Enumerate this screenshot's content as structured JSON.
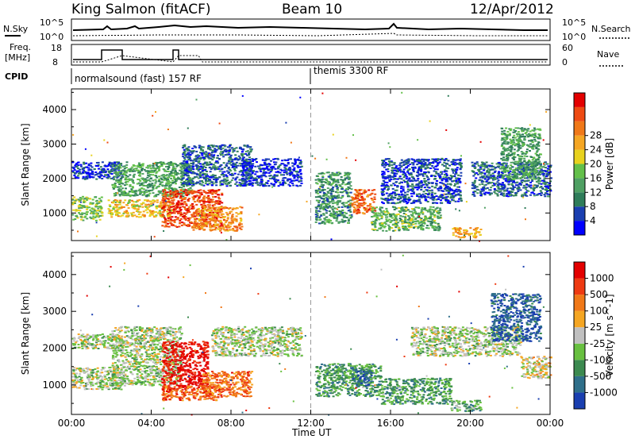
{
  "header": {
    "station": "King Salmon (fitACF)",
    "beam": "Beam 10",
    "date": "12/Apr/2012"
  },
  "status_panels": {
    "nsky_label": "N.Sky",
    "nsky_ticks": [
      "10^5",
      "10^0"
    ],
    "nsearch_label": "N.Search",
    "nsearch_ticks": [
      "10^5",
      "10^0"
    ],
    "freq_label": "Freq.",
    "freq_unit": "[MHz]",
    "freq_ticks": [
      "18",
      "8"
    ],
    "nave_label": "Nave",
    "nave_ticks": [
      "60",
      "0"
    ],
    "cpid_label": "CPID",
    "cpid_segments": [
      {
        "text": "normalsound (fast) 157 RF",
        "start_hour": 0
      },
      {
        "text": "themis 3300 RF",
        "start_hour": 12
      }
    ]
  },
  "time_axis": {
    "label": "Time UT",
    "ticks": [
      "00:00",
      "04:00",
      "08:00",
      "12:00",
      "16:00",
      "20:00",
      "00:00"
    ],
    "range_hours": [
      0,
      24
    ]
  },
  "chart_data": [
    {
      "type": "heatmap",
      "name": "power",
      "ylabel": "Slant Range [km]",
      "yticks": [
        1000,
        2000,
        3000,
        4000
      ],
      "ylim": [
        200,
        4600
      ],
      "xlim_hours": [
        0,
        24
      ],
      "colorbar_label": "Power [dB]",
      "colorbar_ticks": [
        "4",
        "8",
        "12",
        "16",
        "20",
        "24",
        "28"
      ],
      "colors": [
        "#0000ff",
        "#1a3fb0",
        "#2f7d5a",
        "#4fa063",
        "#63c04a",
        "#e8d21e",
        "#f5a623",
        "#f07818",
        "#ee4a12",
        "#e30000"
      ],
      "regions": [
        {
          "t": [
            0.0,
            1.5
          ],
          "r": [
            800,
            1500
          ],
          "v": 0.45
        },
        {
          "t": [
            0.0,
            2.5
          ],
          "r": [
            2000,
            2500
          ],
          "v": 0.12
        },
        {
          "t": [
            1.8,
            5.0
          ],
          "r": [
            900,
            1400
          ],
          "v": 0.6
        },
        {
          "t": [
            2.0,
            6.0
          ],
          "r": [
            1500,
            2500
          ],
          "v": 0.35
        },
        {
          "t": [
            4.5,
            7.5
          ],
          "r": [
            600,
            1700
          ],
          "v": 0.85
        },
        {
          "t": [
            5.5,
            9.0
          ],
          "r": [
            1800,
            3000
          ],
          "v": 0.2
        },
        {
          "t": [
            6.0,
            8.5
          ],
          "r": [
            500,
            1200
          ],
          "v": 0.7
        },
        {
          "t": [
            8.5,
            11.5
          ],
          "r": [
            1800,
            2600
          ],
          "v": 0.1
        },
        {
          "t": [
            12.2,
            14.0
          ],
          "r": [
            700,
            2200
          ],
          "v": 0.3
        },
        {
          "t": [
            14.0,
            15.2
          ],
          "r": [
            1000,
            1700
          ],
          "v": 0.8
        },
        {
          "t": [
            15.0,
            18.5
          ],
          "r": [
            500,
            1200
          ],
          "v": 0.4
        },
        {
          "t": [
            15.5,
            19.5
          ],
          "r": [
            1300,
            2600
          ],
          "v": 0.15
        },
        {
          "t": [
            19.0,
            20.5
          ],
          "r": [
            300,
            600
          ],
          "v": 0.65
        },
        {
          "t": [
            20.0,
            24.0
          ],
          "r": [
            1500,
            2500
          ],
          "v": 0.2
        },
        {
          "t": [
            21.5,
            23.5
          ],
          "r": [
            2000,
            3500
          ],
          "v": 0.35
        }
      ]
    },
    {
      "type": "heatmap",
      "name": "velocity",
      "ylabel": "Slant Range [km]",
      "yticks": [
        1000,
        2000,
        3000,
        4000
      ],
      "ylim": [
        200,
        4600
      ],
      "xlim_hours": [
        0,
        24
      ],
      "colorbar_label": "Velocity [m s^-1]",
      "colorbar_ticks": [
        "1000",
        "500",
        "100",
        "25",
        "-25",
        "-100",
        "-500",
        "-1000"
      ],
      "colors": [
        "#1a3fb0",
        "#2f6f8a",
        "#3c8a50",
        "#68c040",
        "#c0c0c0",
        "#f5a623",
        "#f07818",
        "#ee3a12",
        "#e30000"
      ],
      "regions": [
        {
          "t": [
            0.0,
            2.5
          ],
          "r": [
            900,
            1500
          ],
          "v": 0.45
        },
        {
          "t": [
            0.0,
            2.5
          ],
          "r": [
            2000,
            2400
          ],
          "v": 0.45
        },
        {
          "t": [
            2.0,
            5.5
          ],
          "r": [
            1000,
            2600
          ],
          "v": 0.45
        },
        {
          "t": [
            4.5,
            6.8
          ],
          "r": [
            900,
            2200
          ],
          "v": 0.95
        },
        {
          "t": [
            4.5,
            7.5
          ],
          "r": [
            600,
            1000
          ],
          "v": 0.78
        },
        {
          "t": [
            6.5,
            9.0
          ],
          "r": [
            700,
            1400
          ],
          "v": 0.75
        },
        {
          "t": [
            7.0,
            11.5
          ],
          "r": [
            1800,
            2600
          ],
          "v": 0.45
        },
        {
          "t": [
            12.2,
            15.5
          ],
          "r": [
            700,
            1600
          ],
          "v": 0.3
        },
        {
          "t": [
            14.0,
            15.0
          ],
          "r": [
            1000,
            1500
          ],
          "v": 0.15
        },
        {
          "t": [
            15.5,
            19.0
          ],
          "r": [
            500,
            1200
          ],
          "v": 0.3
        },
        {
          "t": [
            19.0,
            20.5
          ],
          "r": [
            300,
            600
          ],
          "v": 0.35
        },
        {
          "t": [
            17.0,
            22.5
          ],
          "r": [
            1800,
            2600
          ],
          "v": 0.45
        },
        {
          "t": [
            21.0,
            23.5
          ],
          "r": [
            2200,
            3500
          ],
          "v": 0.1
        },
        {
          "t": [
            22.5,
            24.0
          ],
          "r": [
            1200,
            1800
          ],
          "v": 0.55
        }
      ]
    }
  ]
}
